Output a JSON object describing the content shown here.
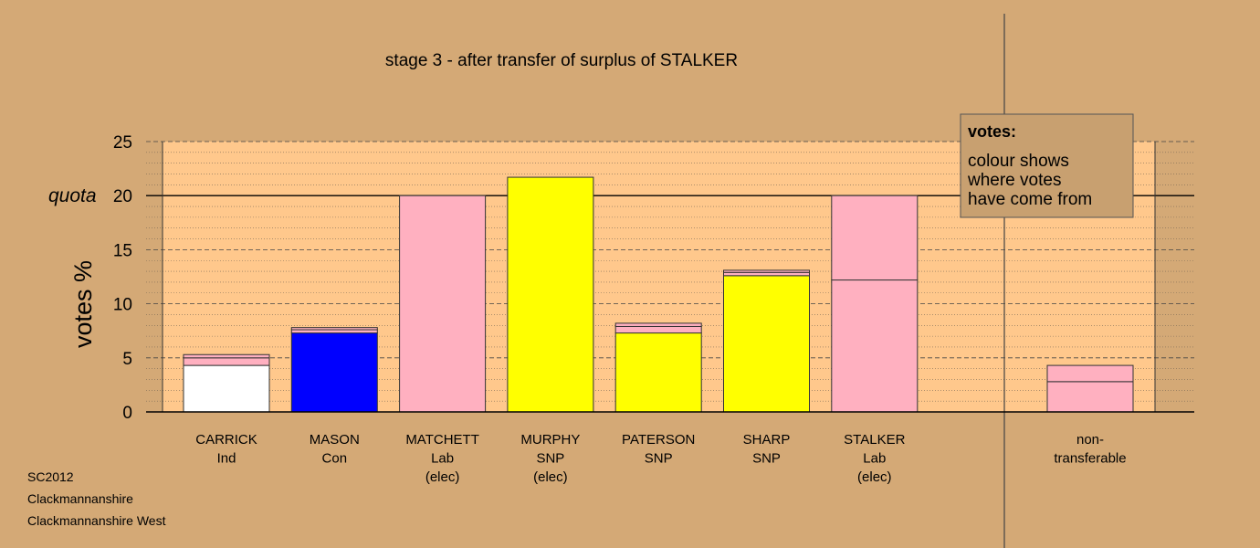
{
  "chart_data": {
    "type": "bar",
    "title": "stage 3 - after transfer of surplus of STALKER",
    "ylabel": "votes %",
    "ylim": [
      0,
      25
    ],
    "yticks": [
      0,
      5,
      10,
      15,
      20,
      25
    ],
    "quota": {
      "label": "quota",
      "value": 20
    },
    "grid": true,
    "legend": {
      "position": "top-right",
      "heading": "votes:",
      "lines": [
        "colour shows",
        "where votes",
        "have come from"
      ]
    },
    "categories": [
      {
        "lines": [
          "CARRICK",
          "Ind"
        ],
        "segments": [
          {
            "value": 4.3,
            "color": "#ffffff"
          },
          {
            "value": 0.7,
            "color": "#ffb0c0"
          },
          {
            "value": 0.3,
            "color": "#ffb0c0"
          }
        ]
      },
      {
        "lines": [
          "MASON",
          "Con"
        ],
        "segments": [
          {
            "value": 7.3,
            "color": "#0000ff"
          },
          {
            "value": 0.3,
            "color": "#ffb0c0"
          },
          {
            "value": 0.2,
            "color": "#ffb0c0"
          }
        ]
      },
      {
        "lines": [
          "MATCHETT",
          "Lab",
          "(elec)"
        ],
        "segments": [
          {
            "value": 20.0,
            "color": "#ffb0c0"
          }
        ]
      },
      {
        "lines": [
          "MURPHY",
          "SNP",
          "(elec)"
        ],
        "segments": [
          {
            "value": 21.7,
            "color": "#ffff00"
          }
        ]
      },
      {
        "lines": [
          "PATERSON",
          "SNP"
        ],
        "segments": [
          {
            "value": 7.3,
            "color": "#ffff00"
          },
          {
            "value": 0.6,
            "color": "#ffb0c0"
          },
          {
            "value": 0.3,
            "color": "#ffb0c0"
          }
        ]
      },
      {
        "lines": [
          "SHARP",
          "SNP"
        ],
        "segments": [
          {
            "value": 12.6,
            "color": "#ffff00"
          },
          {
            "value": 0.3,
            "color": "#ffb0c0"
          },
          {
            "value": 0.2,
            "color": "#ffb0c0"
          }
        ]
      },
      {
        "lines": [
          "STALKER",
          "Lab",
          "(elec)"
        ],
        "segments": [
          {
            "value": 12.2,
            "color": "#ffb0c0"
          },
          {
            "value": 7.8,
            "color": "#ffb0c0"
          }
        ]
      }
    ],
    "nontransferable": {
      "lines": [
        "non-",
        "transferable"
      ],
      "segments": [
        {
          "value": 2.8,
          "color": "#ffb0c0"
        },
        {
          "value": 1.5,
          "color": "#ffb0c0"
        }
      ]
    },
    "colors": {
      "background": "#d4a976",
      "plot_area": "#ffc88c",
      "legend_box": "#c8a070"
    }
  },
  "footer": [
    "SC2012",
    "Clackmannanshire",
    "Clackmannanshire West"
  ]
}
